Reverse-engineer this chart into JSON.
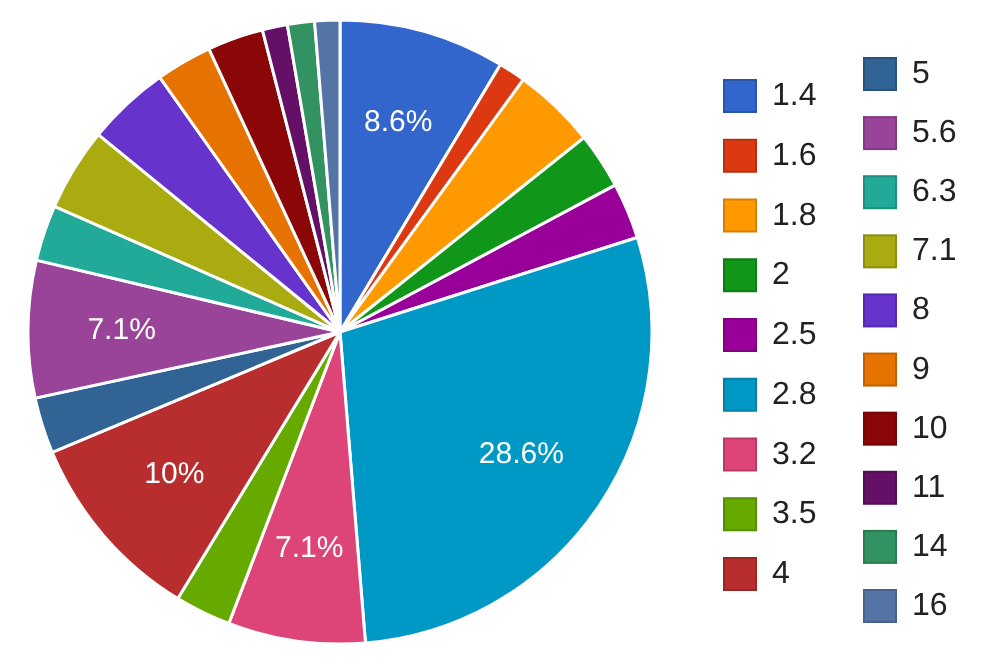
{
  "chart_data": {
    "type": "pie",
    "categories": [
      "1.4",
      "1.6",
      "1.8",
      "2",
      "2.5",
      "2.8",
      "3.2",
      "3.5",
      "4",
      "5",
      "5.6",
      "6.3",
      "7.1",
      "8",
      "9",
      "10",
      "11",
      "14",
      "16"
    ],
    "values": [
      8.6,
      1.4,
      4.3,
      2.9,
      2.9,
      28.6,
      7.1,
      2.9,
      10,
      2.9,
      7.1,
      2.9,
      4.3,
      4.3,
      2.9,
      2.9,
      1.3,
      1.4,
      1.3
    ],
    "colors": [
      "#3366cc",
      "#dc3912",
      "#ff9900",
      "#109618",
      "#990099",
      "#0099c6",
      "#dd4477",
      "#66aa00",
      "#b82e2e",
      "#316395",
      "#994499",
      "#22aa99",
      "#aaaa11",
      "#6633cc",
      "#e67300",
      "#8b0707",
      "#651067",
      "#329262",
      "#5574a6"
    ],
    "value_labels": [
      "8.6%",
      null,
      null,
      null,
      null,
      "28.6%",
      "7.1%",
      null,
      "10%",
      null,
      "7.1%",
      null,
      null,
      null,
      null,
      null,
      null,
      null,
      null
    ],
    "legend": "right"
  }
}
